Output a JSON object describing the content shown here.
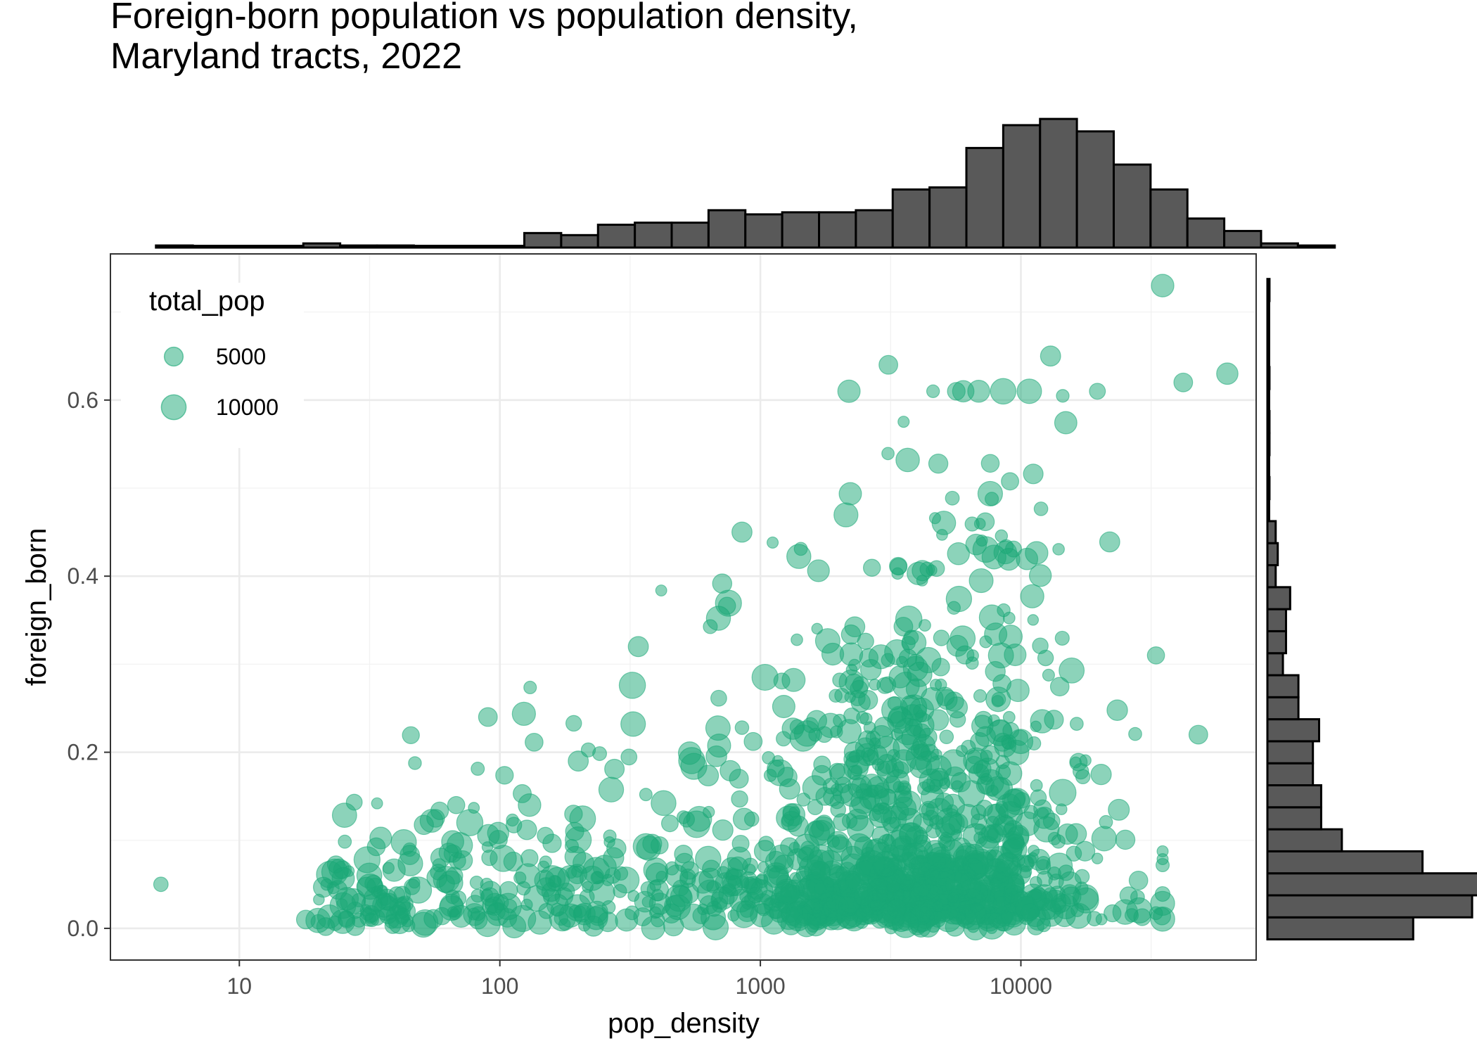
{
  "chart_data": {
    "type": "scatter",
    "title_line1": "Foreign-born population vs population density,",
    "title_line2": "Maryland tracts, 2022",
    "xlabel": "pop_density",
    "ylabel": "foreign_born",
    "x_scale": "log10",
    "xlim": [
      3.2,
      80000
    ],
    "ylim": [
      -0.036,
      0.766
    ],
    "x_ticks": [
      10,
      100,
      1000,
      10000
    ],
    "x_tick_labels": [
      "10",
      "100",
      "1000",
      "10000"
    ],
    "y_ticks": [
      0.0,
      0.2,
      0.4,
      0.6
    ],
    "y_tick_labels": [
      "0.0",
      "0.2",
      "0.4",
      "0.6"
    ],
    "grid": true,
    "point_color": "#1aa876",
    "point_alpha": 0.5,
    "legend": {
      "title": "total_pop",
      "placement": "top-left (inside panel)",
      "entries": [
        {
          "label": "5000",
          "size_value": 5000
        },
        {
          "label": "10000",
          "size_value": 10000
        }
      ]
    },
    "points_labeled_outliers": [
      {
        "x": 5,
        "y": 0.05,
        "size": 2500
      },
      {
        "x": 35000,
        "y": 0.73,
        "size": 8000
      },
      {
        "x": 3100,
        "y": 0.64,
        "size": 5000
      },
      {
        "x": 13000,
        "y": 0.65,
        "size": 6000
      },
      {
        "x": 42000,
        "y": 0.62,
        "size": 5000
      },
      {
        "x": 62000,
        "y": 0.63,
        "size": 7000
      },
      {
        "x": 90,
        "y": 0.24,
        "size": 5000
      },
      {
        "x": 850,
        "y": 0.45,
        "size": 6000
      },
      {
        "x": 340,
        "y": 0.32,
        "size": 6000
      },
      {
        "x": 200,
        "y": 0.19,
        "size": 6000
      },
      {
        "x": 130,
        "y": 0.14,
        "size": 8000
      },
      {
        "x": 68,
        "y": 0.14,
        "size": 4000
      },
      {
        "x": 18,
        "y": 0.01,
        "size": 5000
      },
      {
        "x": 48000,
        "y": 0.22,
        "size": 5000
      },
      {
        "x": 33000,
        "y": 0.31,
        "size": 4000
      }
    ],
    "point_cloud_summary": {
      "n_points_approx": 1450,
      "x_range_main": [
        18,
        35000
      ],
      "x_log_mode": 3.65,
      "y_range": [
        0.0,
        0.73
      ],
      "y_mode": 0.05,
      "size_range": [
        1000,
        12000
      ]
    },
    "top_histogram": {
      "variable": "pop_density",
      "bin_log_start": 0.68,
      "bin_log_width": 0.1414,
      "counts": [
        1,
        0,
        0,
        0,
        2,
        1,
        1,
        0,
        0,
        0,
        7,
        6,
        11,
        12,
        12,
        18,
        16,
        17,
        17,
        18,
        28,
        29,
        48,
        59,
        62,
        56,
        40,
        28,
        14,
        8,
        2,
        1
      ],
      "fill": "#595959",
      "stroke": "#000000"
    },
    "right_histogram": {
      "variable": "foreign_born",
      "bin_start": -0.0125,
      "bin_width": 0.025,
      "counts": [
        141,
        198,
        232,
        150,
        72,
        52,
        52,
        44,
        44,
        50,
        30,
        30,
        15,
        18,
        18,
        22,
        8,
        10,
        8,
        0,
        2,
        0,
        2,
        2,
        0,
        2,
        0,
        0,
        0,
        2
      ]
    }
  }
}
